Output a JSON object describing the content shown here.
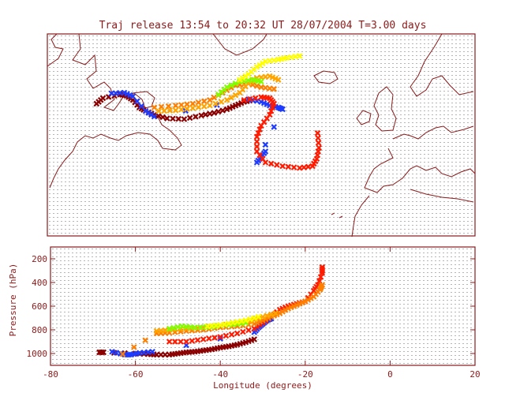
{
  "title": "Traj release 13:54 to 20:32 UT 28/07/2004    T=3.00 days",
  "colors": {
    "frame": "#8b1a1a",
    "dots": "#6b6b6b",
    "series": [
      "#8b0000",
      "#1e3cff",
      "#ff1a00",
      "#ff7f00",
      "#ffa500",
      "#7fff00",
      "#ffff00"
    ]
  },
  "chart_data": [
    {
      "type": "map-trajectory",
      "projection": "lon-lat",
      "xlim": [
        -80,
        20
      ],
      "ylim": [
        20,
        75
      ],
      "grid": "dotted",
      "series": [
        {
          "color_key": 0,
          "points": [
            [
              -68.5,
              56
            ],
            [
              -67,
              57.5
            ],
            [
              -63,
              58.5
            ],
            [
              -61.5,
              58.2
            ],
            [
              -60,
              57
            ],
            [
              -58.5,
              55
            ],
            [
              -57,
              54
            ],
            [
              -55,
              53
            ],
            [
              -52,
              52
            ],
            [
              -48,
              51.8
            ],
            [
              -44,
              52.8
            ],
            [
              -41,
              53.5
            ],
            [
              -38,
              54.5
            ],
            [
              -36,
              55.5
            ],
            [
              -34,
              56.5
            ],
            [
              -32,
              57
            ]
          ]
        },
        {
          "color_key": 1,
          "points": [
            [
              -65,
              58.8
            ],
            [
              -62,
              59
            ],
            [
              -60,
              58
            ],
            [
              -57,
              54
            ],
            [
              -55,
              52.5
            ],
            [
              -33,
              57.2
            ],
            [
              -30,
              56.5
            ],
            [
              -28,
              55.5
            ],
            [
              -26,
              55
            ],
            [
              -25,
              54.5
            ],
            [
              -31,
              40
            ],
            [
              -30,
              41.5
            ],
            [
              -29,
              43
            ]
          ]
        },
        {
          "color_key": 2,
          "points": [
            [
              -34,
              57
            ],
            [
              -30,
              57.8
            ],
            [
              -28,
              57.5
            ],
            [
              -27,
              56
            ],
            [
              -28,
              53
            ],
            [
              -30,
              50
            ],
            [
              -31,
              47
            ],
            [
              -31,
              43
            ],
            [
              -29,
              40
            ],
            [
              -25,
              39
            ],
            [
              -21,
              38.5
            ],
            [
              -18,
              39
            ],
            [
              -17,
              41
            ],
            [
              -16.5,
              44
            ],
            [
              -16.8,
              48
            ]
          ]
        },
        {
          "color_key": 3,
          "points": [
            [
              -55,
              55
            ],
            [
              -50,
              55.5
            ],
            [
              -46,
              56
            ],
            [
              -42,
              57
            ],
            [
              -39,
              59
            ],
            [
              -36,
              61
            ],
            [
              -33,
              61.5
            ],
            [
              -30,
              60.5
            ],
            [
              -27,
              60
            ]
          ]
        },
        {
          "color_key": 4,
          "points": [
            [
              -54,
              54
            ],
            [
              -50,
              54.2
            ],
            [
              -46,
              54.8
            ],
            [
              -42,
              55.5
            ],
            [
              -38,
              57
            ],
            [
              -35,
              59
            ],
            [
              -33,
              61.5
            ],
            [
              -31,
              63
            ],
            [
              -28,
              63.5
            ],
            [
              -26,
              62.5
            ]
          ]
        },
        {
          "color_key": 5,
          "points": [
            [
              -40,
              58.5
            ],
            [
              -38,
              60.5
            ],
            [
              -35,
              62
            ],
            [
              -32,
              62.5
            ],
            [
              -30,
              62
            ]
          ]
        },
        {
          "color_key": 6,
          "points": [
            [
              -35,
              62.5
            ],
            [
              -33,
              64
            ],
            [
              -31,
              66
            ],
            [
              -29,
              67.5
            ],
            [
              -26,
              68
            ],
            [
              -24,
              68.5
            ],
            [
              -21,
              69
            ]
          ]
        }
      ]
    },
    {
      "type": "scatter",
      "xlabel": "Longitude  (degrees)",
      "ylabel": "Pressure  (hPa)",
      "xlim": [
        -80,
        20
      ],
      "ylim": [
        1100,
        100
      ],
      "xticks": [
        -80,
        -60,
        -40,
        -20,
        0,
        20
      ],
      "yticks": [
        200,
        400,
        600,
        800,
        1000
      ],
      "series": [
        {
          "color_key": 0,
          "points": [
            [
              -68.5,
              990
            ],
            [
              -67.5,
              990
            ],
            [
              -60,
              1000
            ],
            [
              -57,
              1005
            ],
            [
              -55,
              1010
            ],
            [
              -52,
              1010
            ],
            [
              -50,
              1000
            ],
            [
              -48,
              990
            ],
            [
              -46,
              985
            ],
            [
              -44,
              975
            ],
            [
              -42,
              965
            ],
            [
              -40,
              950
            ],
            [
              -38,
              940
            ],
            [
              -36,
              925
            ],
            [
              -34,
              905
            ],
            [
              -32,
              880
            ]
          ]
        },
        {
          "color_key": 1,
          "points": [
            [
              -65.5,
              985
            ],
            [
              -62.5,
              1010
            ],
            [
              -61,
              1010
            ],
            [
              -59,
              995
            ],
            [
              -56,
              985
            ],
            [
              -32,
              820
            ],
            [
              -31,
              780
            ],
            [
              -30,
              750
            ],
            [
              -29,
              720
            ],
            [
              -28,
              705
            ]
          ]
        },
        {
          "color_key": 2,
          "points": [
            [
              -52,
              900
            ],
            [
              -48,
              900
            ],
            [
              -44,
              880
            ],
            [
              -40,
              860
            ],
            [
              -36,
              830
            ],
            [
              -32,
              790
            ],
            [
              -30,
              740
            ],
            [
              -28,
              690
            ],
            [
              -26,
              630
            ],
            [
              -24,
              600
            ],
            [
              -22,
              580
            ],
            [
              -20,
              560
            ],
            [
              -18,
              470
            ],
            [
              -17,
              420
            ],
            [
              -16,
              320
            ],
            [
              -16,
              270
            ]
          ]
        },
        {
          "color_key": 3,
          "points": [
            [
              -63,
              1005
            ],
            [
              -55,
              830
            ],
            [
              -52,
              825
            ],
            [
              -48,
              810
            ],
            [
              -44,
              800
            ],
            [
              -40,
              780
            ],
            [
              -36,
              770
            ],
            [
              -32,
              750
            ],
            [
              -30,
              720
            ],
            [
              -28,
              690
            ],
            [
              -26,
              660
            ],
            [
              -24,
              620
            ],
            [
              -22,
              590
            ],
            [
              -20,
              560
            ],
            [
              -18,
              520
            ],
            [
              -16.5,
              460
            ],
            [
              -16,
              420
            ]
          ]
        },
        {
          "color_key": 4,
          "points": [
            [
              -55,
              810
            ],
            [
              -52,
              800
            ],
            [
              -48,
              790
            ],
            [
              -44,
              780
            ],
            [
              -40,
              760
            ],
            [
              -36,
              745
            ],
            [
              -33,
              730
            ],
            [
              -30,
              690
            ],
            [
              -27,
              660
            ]
          ]
        },
        {
          "color_key": 5,
          "points": [
            [
              -52,
              790
            ],
            [
              -49,
              770
            ],
            [
              -46,
              780
            ],
            [
              -42,
              775
            ],
            [
              -40,
              760
            ],
            [
              -37,
              755
            ],
            [
              -34,
              740
            ]
          ]
        },
        {
          "color_key": 6,
          "points": [
            [
              -43,
              770
            ],
            [
              -40,
              760
            ],
            [
              -37,
              740
            ],
            [
              -34,
              720
            ],
            [
              -31,
              690
            ]
          ]
        }
      ]
    }
  ]
}
